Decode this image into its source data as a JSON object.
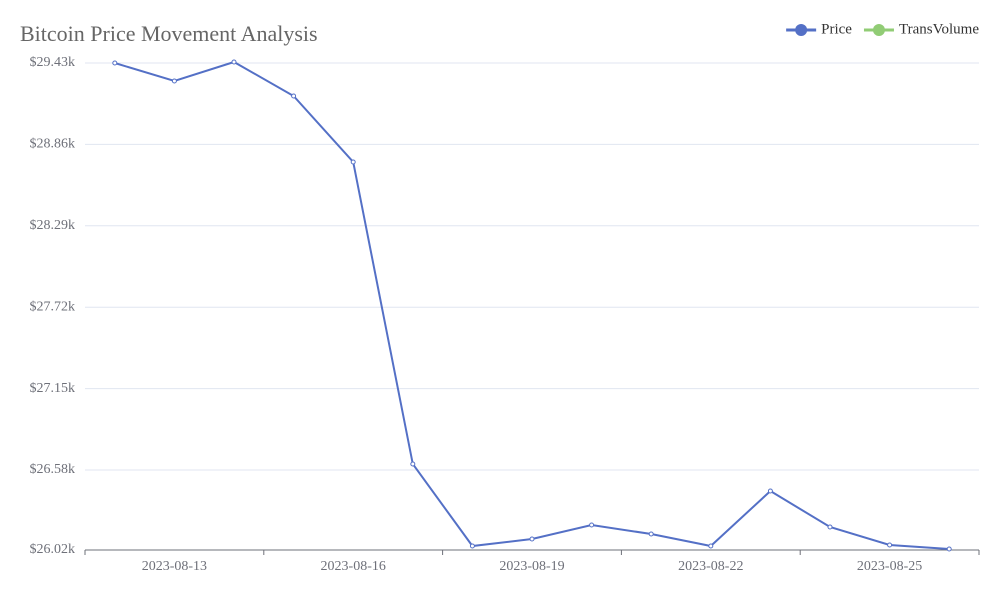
{
  "chart_data": {
    "type": "line",
    "title": "Bitcoin Price Movement Analysis",
    "categories": [
      null,
      "2023-08-13",
      null,
      null,
      "2023-08-16",
      null,
      null,
      "2023-08-19",
      null,
      null,
      "2023-08-22",
      null,
      null,
      "2023-08-25",
      null
    ],
    "series": [
      {
        "name": "Price",
        "color": "#5470c6",
        "values": [
          29430,
          29304,
          29437,
          29199,
          28737,
          26622,
          26048,
          26097,
          26195,
          26132,
          26048,
          26433,
          26181,
          26055,
          26027
        ]
      },
      {
        "name": "TransVolume",
        "color": "#91cc75"
      }
    ],
    "ylim": [
      26020,
      29430
    ],
    "yticks": [
      {
        "value": 26020,
        "label": "$26.02k"
      },
      {
        "value": 26580,
        "label": "$26.58k"
      },
      {
        "value": 27150,
        "label": "$27.15k"
      },
      {
        "value": 27720,
        "label": "$27.72k"
      },
      {
        "value": 28290,
        "label": "$28.29k"
      },
      {
        "value": 28860,
        "label": "$28.86k"
      },
      {
        "value": 29430,
        "label": "$29.43k"
      }
    ],
    "grid": true,
    "legend": "top-right"
  }
}
